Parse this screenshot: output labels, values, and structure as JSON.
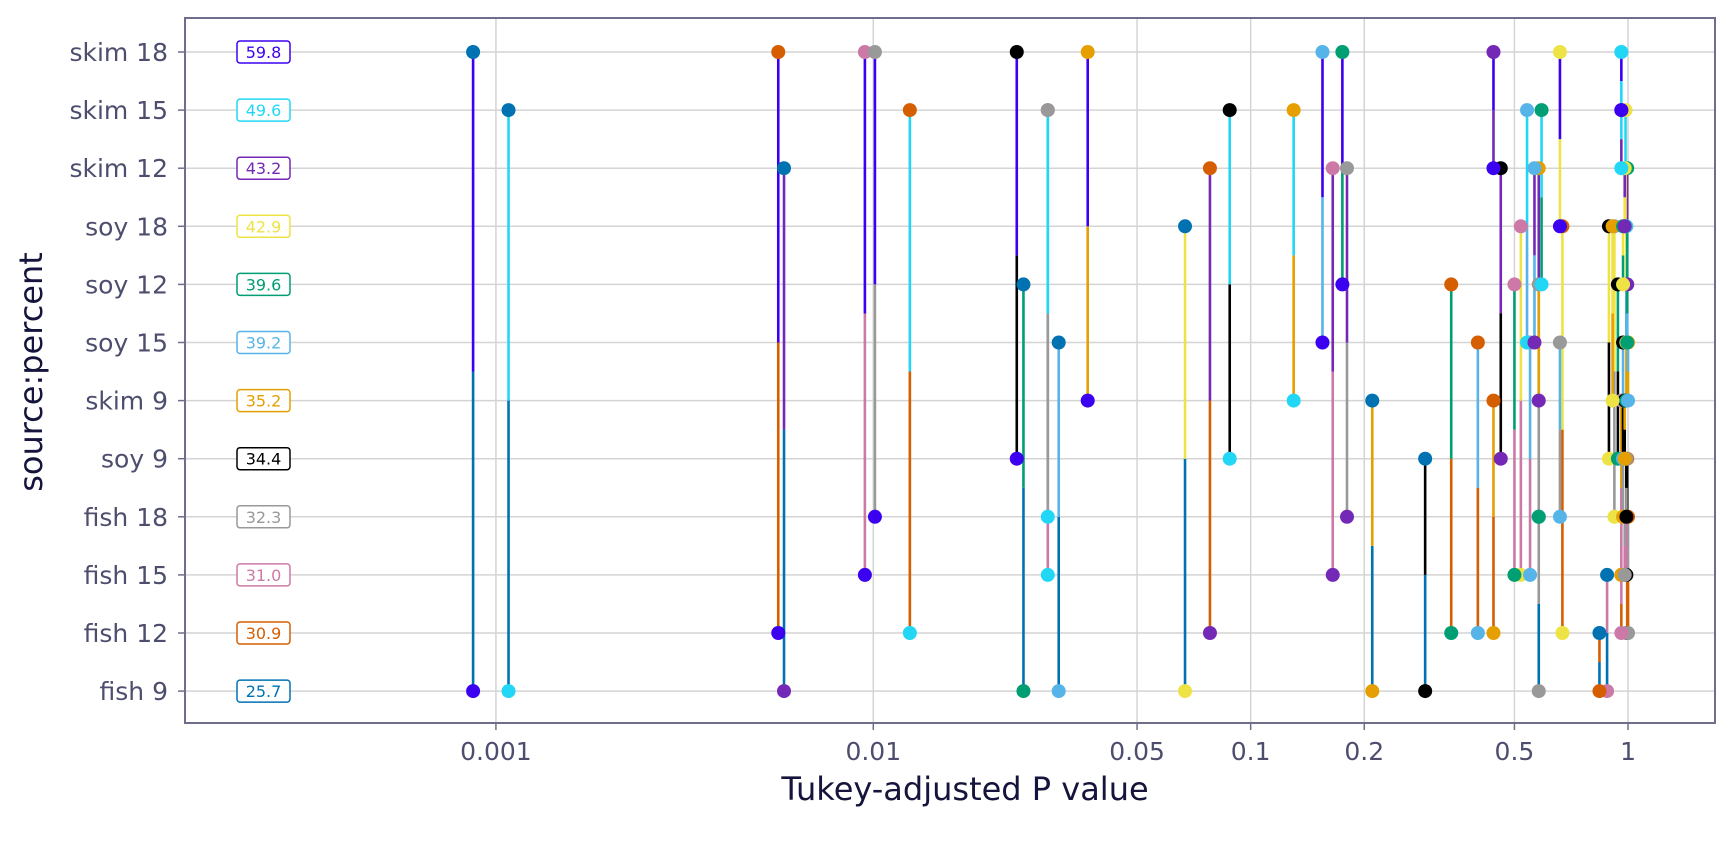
{
  "chart_data": {
    "type": "pvalue-plot",
    "xlabel": "Tukey-adjusted P value",
    "ylabel": "source:percent",
    "x_scale": "log",
    "xlim": [
      0.00015,
      1.7
    ],
    "x_ticks": [
      {
        "value": 0.001,
        "label": "0.001"
      },
      {
        "value": 0.01,
        "label": "0.01"
      },
      {
        "value": 0.05,
        "label": "0.05"
      },
      {
        "value": 0.1,
        "label": "0.1"
      },
      {
        "value": 0.2,
        "label": "0.2"
      },
      {
        "value": 0.5,
        "label": "0.5"
      },
      {
        "value": 1,
        "label": "1"
      }
    ],
    "grid": true,
    "groups": [
      {
        "label": "skim 18",
        "mean": "59.8",
        "color": "#3b00f0"
      },
      {
        "label": "skim 15",
        "mean": "49.6",
        "color": "#22d6f5"
      },
      {
        "label": "skim 12",
        "mean": "43.2",
        "color": "#7328b6"
      },
      {
        "label": "soy 18",
        "mean": "42.9",
        "color": "#ede345"
      },
      {
        "label": "soy 12",
        "mean": "39.6",
        "color": "#009e73"
      },
      {
        "label": "soy 15",
        "mean": "39.2",
        "color": "#56b4e9"
      },
      {
        "label": "skim 9",
        "mean": "35.2",
        "color": "#e69f00"
      },
      {
        "label": "soy 9",
        "mean": "34.4",
        "color": "#000000"
      },
      {
        "label": "fish 18",
        "mean": "32.3",
        "color": "#999999"
      },
      {
        "label": "fish 15",
        "mean": "31.0",
        "color": "#cc79a7"
      },
      {
        "label": "fish 12",
        "mean": "30.9",
        "color": "#d55e00"
      },
      {
        "label": "fish 9",
        "mean": "25.7",
        "color": "#0072b2"
      }
    ],
    "comparisons": [
      {
        "a": "fish 9",
        "b": "skim 18",
        "p": 0.00087
      },
      {
        "a": "fish 9",
        "b": "skim 15",
        "p": 0.00108
      },
      {
        "a": "fish 9",
        "b": "skim 12",
        "p": 0.0058
      },
      {
        "a": "fish 9",
        "b": "soy 18",
        "p": 0.067
      },
      {
        "a": "fish 9",
        "b": "soy 12",
        "p": 0.025
      },
      {
        "a": "fish 9",
        "b": "soy 15",
        "p": 0.031
      },
      {
        "a": "fish 9",
        "b": "skim 9",
        "p": 0.21
      },
      {
        "a": "fish 9",
        "b": "soy 9",
        "p": 0.29
      },
      {
        "a": "fish 9",
        "b": "fish 18",
        "p": 0.58
      },
      {
        "a": "fish 9",
        "b": "fish 15",
        "p": 0.88
      },
      {
        "a": "fish 9",
        "b": "fish 12",
        "p": 0.84
      },
      {
        "a": "fish 12",
        "b": "skim 18",
        "p": 0.0056
      },
      {
        "a": "fish 12",
        "b": "skim 15",
        "p": 0.0125
      },
      {
        "a": "fish 12",
        "b": "skim 12",
        "p": 0.078
      },
      {
        "a": "fish 12",
        "b": "soy 18",
        "p": 0.67
      },
      {
        "a": "fish 12",
        "b": "soy 12",
        "p": 0.34
      },
      {
        "a": "fish 12",
        "b": "soy 15",
        "p": 0.4
      },
      {
        "a": "fish 12",
        "b": "skim 9",
        "p": 0.44
      },
      {
        "a": "fish 12",
        "b": "soy 9",
        "p": 0.995
      },
      {
        "a": "fish 12",
        "b": "fish 18",
        "p": 1.0
      },
      {
        "a": "fish 12",
        "b": "fish 15",
        "p": 0.96
      },
      {
        "a": "fish 15",
        "b": "skim 18",
        "p": 0.0095
      },
      {
        "a": "fish 15",
        "b": "skim 15",
        "p": 0.029
      },
      {
        "a": "fish 15",
        "b": "skim 12",
        "p": 0.165
      },
      {
        "a": "fish 15",
        "b": "soy 18",
        "p": 0.52
      },
      {
        "a": "fish 15",
        "b": "soy 12",
        "p": 0.5
      },
      {
        "a": "fish 15",
        "b": "soy 15",
        "p": 0.55
      },
      {
        "a": "fish 15",
        "b": "skim 9",
        "p": 0.96
      },
      {
        "a": "fish 15",
        "b": "soy 9",
        "p": 0.99
      },
      {
        "a": "fish 15",
        "b": "fish 18",
        "p": 0.98
      },
      {
        "a": "fish 18",
        "b": "skim 18",
        "p": 0.0101
      },
      {
        "a": "fish 18",
        "b": "skim 15",
        "p": 0.029
      },
      {
        "a": "fish 18",
        "b": "skim 12",
        "p": 0.18
      },
      {
        "a": "fish 18",
        "b": "soy 18",
        "p": 0.92
      },
      {
        "a": "fish 18",
        "b": "soy 12",
        "p": 0.58
      },
      {
        "a": "fish 18",
        "b": "soy 15",
        "p": 0.66
      },
      {
        "a": "fish 18",
        "b": "skim 9",
        "p": 0.97
      },
      {
        "a": "fish 18",
        "b": "soy 9",
        "p": 0.99
      },
      {
        "a": "soy 9",
        "b": "skim 18",
        "p": 0.024
      },
      {
        "a": "soy 9",
        "b": "skim 15",
        "p": 0.088
      },
      {
        "a": "soy 9",
        "b": "skim 12",
        "p": 0.46
      },
      {
        "a": "soy 9",
        "b": "soy 18",
        "p": 0.89
      },
      {
        "a": "soy 9",
        "b": "soy 12",
        "p": 0.94
      },
      {
        "a": "soy 9",
        "b": "soy 15",
        "p": 0.97
      },
      {
        "a": "soy 9",
        "b": "skim 9",
        "p": 0.98
      },
      {
        "a": "skim 9",
        "b": "skim 18",
        "p": 0.037
      },
      {
        "a": "skim 9",
        "b": "skim 15",
        "p": 0.13
      },
      {
        "a": "skim 9",
        "b": "skim 12",
        "p": 0.58
      },
      {
        "a": "skim 9",
        "b": "soy 18",
        "p": 0.91
      },
      {
        "a": "skim 9",
        "b": "soy 12",
        "p": 0.99
      },
      {
        "a": "skim 9",
        "b": "soy 15",
        "p": 1.0
      },
      {
        "a": "soy 15",
        "b": "skim 18",
        "p": 0.155
      },
      {
        "a": "soy 15",
        "b": "skim 15",
        "p": 0.54
      },
      {
        "a": "soy 15",
        "b": "skim 12",
        "p": 0.565
      },
      {
        "a": "soy 15",
        "b": "soy 18",
        "p": 0.99
      },
      {
        "a": "soy 15",
        "b": "soy 12",
        "p": 0.995
      },
      {
        "a": "soy 12",
        "b": "skim 18",
        "p": 0.175
      },
      {
        "a": "soy 12",
        "b": "skim 15",
        "p": 0.59
      },
      {
        "a": "soy 12",
        "b": "skim 12",
        "p": 0.995
      },
      {
        "a": "soy 12",
        "b": "soy 18",
        "p": 0.97
      },
      {
        "a": "soy 18",
        "b": "skim 18",
        "p": 0.66
      },
      {
        "a": "soy 18",
        "b": "skim 15",
        "p": 0.985
      },
      {
        "a": "soy 18",
        "b": "skim 12",
        "p": 0.98
      },
      {
        "a": "skim 12",
        "b": "skim 18",
        "p": 0.44
      },
      {
        "a": "skim 12",
        "b": "skim 15",
        "p": 0.96
      },
      {
        "a": "skim 15",
        "b": "skim 18",
        "p": 0.96
      }
    ]
  }
}
